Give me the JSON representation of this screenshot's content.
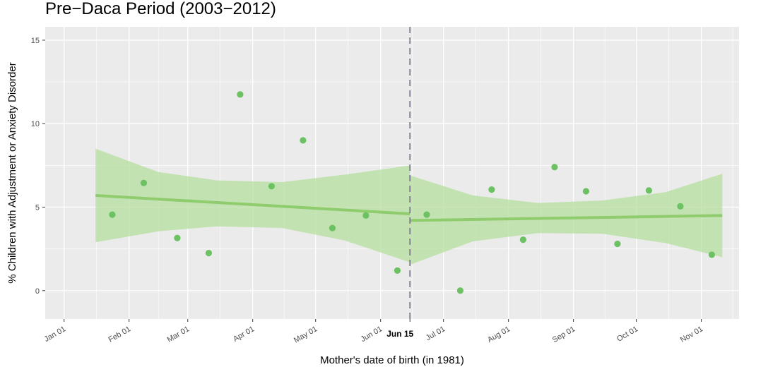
{
  "chart_data": {
    "type": "scatter",
    "title": "Pre−Daca Period  (2003−2012)",
    "xlabel": "Mother's date of birth (in 1981)",
    "ylabel": "% Children with Adjustment or Anxiety Disorder",
    "x_is_date": true,
    "xlim": [
      "1980-12-23",
      "1981-11-19"
    ],
    "ylim": [
      -1.7,
      15.8
    ],
    "yticks": [
      0,
      5,
      10,
      15
    ],
    "xticks": [
      {
        "date": "1981-01-01",
        "label": "Jan 01"
      },
      {
        "date": "1981-02-01",
        "label": "Feb 01"
      },
      {
        "date": "1981-03-01",
        "label": "Mar 01"
      },
      {
        "date": "1981-04-01",
        "label": "Apr 01"
      },
      {
        "date": "1981-05-01",
        "label": "May 01"
      },
      {
        "date": "1981-06-01",
        "label": "Jun 01"
      },
      {
        "date": "1981-06-15",
        "label": "Jun 15",
        "bold": true
      },
      {
        "date": "1981-07-01",
        "label": "Jul 01"
      },
      {
        "date": "1981-08-01",
        "label": "Aug 01"
      },
      {
        "date": "1981-09-01",
        "label": "Sep 01"
      },
      {
        "date": "1981-10-01",
        "label": "Oct 01"
      },
      {
        "date": "1981-11-01",
        "label": "Nov 01"
      }
    ],
    "grid": true,
    "cutoff": "1981-06-15",
    "points": [
      {
        "x": "1981-01-24",
        "y": 4.55
      },
      {
        "x": "1981-02-08",
        "y": 6.45
      },
      {
        "x": "1981-02-24",
        "y": 3.15
      },
      {
        "x": "1981-03-11",
        "y": 2.25
      },
      {
        "x": "1981-03-26",
        "y": 11.75
      },
      {
        "x": "1981-04-10",
        "y": 6.25
      },
      {
        "x": "1981-04-25",
        "y": 9.0
      },
      {
        "x": "1981-05-09",
        "y": 3.75
      },
      {
        "x": "1981-05-25",
        "y": 4.5
      },
      {
        "x": "1981-06-09",
        "y": 1.2
      },
      {
        "x": "1981-06-23",
        "y": 4.55
      },
      {
        "x": "1981-07-09",
        "y": 0.0
      },
      {
        "x": "1981-07-24",
        "y": 6.05
      },
      {
        "x": "1981-08-08",
        "y": 3.05
      },
      {
        "x": "1981-08-23",
        "y": 7.4
      },
      {
        "x": "1981-09-07",
        "y": 5.95
      },
      {
        "x": "1981-09-22",
        "y": 2.8
      },
      {
        "x": "1981-10-07",
        "y": 6.0
      },
      {
        "x": "1981-10-22",
        "y": 5.05
      },
      {
        "x": "1981-11-06",
        "y": 2.15
      }
    ],
    "fits": [
      {
        "x": [
          "1981-01-16",
          "1981-06-15"
        ],
        "y": [
          5.7,
          4.6
        ],
        "band": {
          "x": [
            "1981-01-16",
            "1981-02-15",
            "1981-03-15",
            "1981-04-15",
            "1981-05-15",
            "1981-06-15"
          ],
          "lower": [
            2.9,
            3.55,
            3.85,
            3.75,
            3.0,
            1.7
          ],
          "upper": [
            8.5,
            7.1,
            6.6,
            6.5,
            6.95,
            7.5
          ]
        }
      },
      {
        "x": [
          "1981-06-15",
          "1981-11-11"
        ],
        "y": [
          4.2,
          4.5
        ],
        "band": {
          "x": [
            "1981-06-15",
            "1981-07-15",
            "1981-08-15",
            "1981-09-15",
            "1981-10-15",
            "1981-11-11"
          ],
          "lower": [
            1.55,
            2.95,
            3.45,
            3.4,
            2.85,
            2.0
          ],
          "upper": [
            6.9,
            5.7,
            5.25,
            5.4,
            5.9,
            7.0
          ]
        }
      }
    ],
    "colors": {
      "panel": "#ebebeb",
      "grid": "#ffffff",
      "point": "#6cc163",
      "line": "#8fcc6e",
      "band": "#b5df9e",
      "cutoff": "#6e6e80"
    }
  }
}
